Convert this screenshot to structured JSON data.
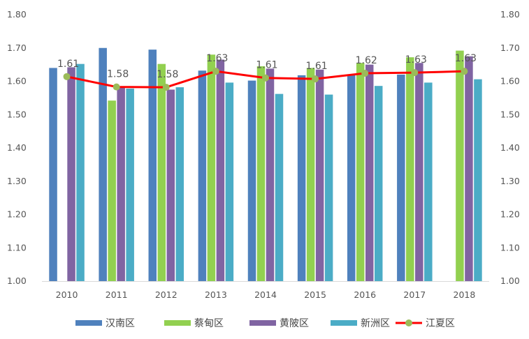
{
  "chart_data": {
    "type": "bar",
    "categories": [
      "2010",
      "2011",
      "2012",
      "2013",
      "2014",
      "2015",
      "2016",
      "2017",
      "2018"
    ],
    "ylim": [
      1.0,
      1.8
    ],
    "yticks": [
      "1.00",
      "1.10",
      "1.20",
      "1.30",
      "1.40",
      "1.50",
      "1.60",
      "1.70",
      "1.80"
    ],
    "grid": false,
    "legend": "bottom",
    "series": [
      {
        "name": "汉南区",
        "type": "bar",
        "color": "#4f81bd",
        "values": [
          1.64,
          1.7,
          1.695,
          1.632,
          1.602,
          1.618,
          1.618,
          1.62,
          null
        ]
      },
      {
        "name": "蔡甸区",
        "type": "bar",
        "color": "#92d050",
        "values": [
          null,
          1.542,
          1.652,
          1.68,
          1.645,
          1.64,
          1.655,
          1.672,
          1.692
        ]
      },
      {
        "name": "黄陂区",
        "type": "bar",
        "color": "#8064a2",
        "values": [
          1.642,
          1.585,
          1.575,
          1.665,
          1.638,
          1.635,
          1.65,
          1.655,
          1.675
        ]
      },
      {
        "name": "新洲区",
        "type": "bar",
        "color": "#4bacc6",
        "values": [
          1.652,
          1.578,
          1.582,
          1.596,
          1.562,
          1.56,
          1.586,
          1.596,
          1.606
        ]
      },
      {
        "name": "江夏区",
        "type": "line",
        "color": "#ff0000",
        "marker_color": "#9bbb59",
        "values": [
          1.614,
          1.583,
          1.582,
          1.63,
          1.61,
          1.607,
          1.624,
          1.626,
          1.63
        ],
        "labels": [
          "1.61",
          "1.58",
          "1.58",
          "1.63",
          "1.61",
          "1.61",
          "1.62",
          "1.63",
          "1.63"
        ]
      }
    ]
  }
}
